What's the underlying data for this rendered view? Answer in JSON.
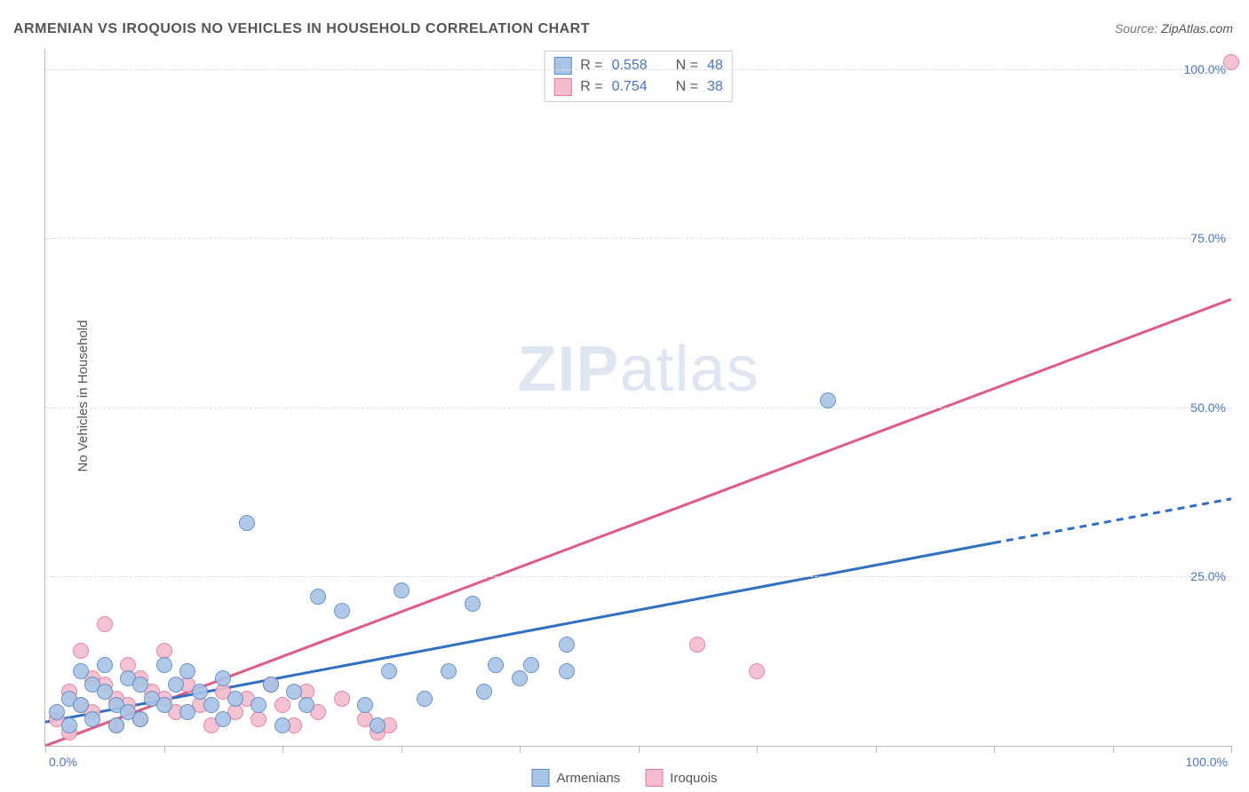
{
  "title": "ARMENIAN VS IROQUOIS NO VEHICLES IN HOUSEHOLD CORRELATION CHART",
  "source_label": "Source: ",
  "source_value": "ZipAtlas.com",
  "ylabel": "No Vehicles in Household",
  "watermark_zip": "ZIP",
  "watermark_atlas": "atlas",
  "chart": {
    "type": "scatter",
    "xlim": [
      0,
      100
    ],
    "ylim": [
      0,
      103
    ],
    "grid_y": [
      25,
      50,
      75,
      100
    ],
    "grid_color": "#dddddd",
    "axis_color": "#bbbbbb",
    "x_ticks": [
      0,
      10,
      20,
      30,
      40,
      50,
      60,
      70,
      80,
      90,
      100
    ],
    "x_tick_labels": {
      "left": "0.0%",
      "right": "100.0%"
    },
    "y_tick_labels": [
      {
        "v": 25,
        "label": "25.0%"
      },
      {
        "v": 50,
        "label": "50.0%"
      },
      {
        "v": 75,
        "label": "75.0%"
      },
      {
        "v": 100,
        "label": "100.0%"
      }
    ],
    "tick_label_color": "#4a76c7",
    "background_color": "#ffffff",
    "point_radius": 8,
    "point_border_width": 1,
    "point_fill_opacity": 0.35
  },
  "series": {
    "armenians": {
      "label": "Armenians",
      "color_stroke": "#5b8ac6",
      "color_fill": "#a9c4e6",
      "R": "0.558",
      "N": "48",
      "trend": {
        "x1": 0,
        "y1": 3.5,
        "x2": 80,
        "y2": 30,
        "dash_x2": 100,
        "dash_y2": 36.5,
        "stroke": "#2f6fc4",
        "width": 3
      },
      "points": [
        [
          1,
          5
        ],
        [
          2,
          7
        ],
        [
          2,
          3
        ],
        [
          3,
          11
        ],
        [
          3,
          6
        ],
        [
          4,
          9
        ],
        [
          4,
          4
        ],
        [
          5,
          8
        ],
        [
          5,
          12
        ],
        [
          6,
          6
        ],
        [
          6,
          3
        ],
        [
          7,
          10
        ],
        [
          7,
          5
        ],
        [
          8,
          9
        ],
        [
          8,
          4
        ],
        [
          9,
          7
        ],
        [
          10,
          12
        ],
        [
          10,
          6
        ],
        [
          11,
          9
        ],
        [
          12,
          5
        ],
        [
          12,
          11
        ],
        [
          13,
          8
        ],
        [
          14,
          6
        ],
        [
          15,
          10
        ],
        [
          15,
          4
        ],
        [
          16,
          7
        ],
        [
          17,
          33
        ],
        [
          18,
          6
        ],
        [
          19,
          9
        ],
        [
          20,
          3
        ],
        [
          21,
          8
        ],
        [
          22,
          6
        ],
        [
          23,
          22
        ],
        [
          25,
          20
        ],
        [
          27,
          6
        ],
        [
          28,
          3
        ],
        [
          29,
          11
        ],
        [
          30,
          23
        ],
        [
          32,
          7
        ],
        [
          34,
          11
        ],
        [
          36,
          21
        ],
        [
          37,
          8
        ],
        [
          38,
          12
        ],
        [
          40,
          10
        ],
        [
          41,
          12
        ],
        [
          44,
          15
        ],
        [
          44,
          11
        ],
        [
          66,
          51
        ]
      ]
    },
    "iroquois": {
      "label": "Iroquois",
      "color_stroke": "#e47a9a",
      "color_fill": "#f4bccd",
      "R": "0.754",
      "N": "38",
      "trend": {
        "x1": 0,
        "y1": 0,
        "x2": 100,
        "y2": 66,
        "stroke": "#e05a84",
        "width": 3
      },
      "points": [
        [
          1,
          4
        ],
        [
          2,
          8
        ],
        [
          2,
          2
        ],
        [
          3,
          6
        ],
        [
          3,
          14
        ],
        [
          4,
          10
        ],
        [
          4,
          5
        ],
        [
          5,
          18
        ],
        [
          5,
          9
        ],
        [
          6,
          7
        ],
        [
          6,
          3
        ],
        [
          7,
          12
        ],
        [
          7,
          6
        ],
        [
          8,
          10
        ],
        [
          8,
          4
        ],
        [
          9,
          8
        ],
        [
          10,
          14
        ],
        [
          10,
          7
        ],
        [
          11,
          5
        ],
        [
          12,
          9
        ],
        [
          13,
          6
        ],
        [
          14,
          3
        ],
        [
          15,
          8
        ],
        [
          16,
          5
        ],
        [
          17,
          7
        ],
        [
          18,
          4
        ],
        [
          19,
          9
        ],
        [
          20,
          6
        ],
        [
          21,
          3
        ],
        [
          22,
          8
        ],
        [
          23,
          5
        ],
        [
          25,
          7
        ],
        [
          27,
          4
        ],
        [
          28,
          2
        ],
        [
          29,
          3
        ],
        [
          55,
          15
        ],
        [
          60,
          11
        ],
        [
          100,
          101
        ]
      ]
    }
  },
  "legend_bottom": [
    {
      "key": "armenians"
    },
    {
      "key": "iroquois"
    }
  ],
  "stats_box": {
    "R_label": "R =",
    "N_label": "N ="
  }
}
